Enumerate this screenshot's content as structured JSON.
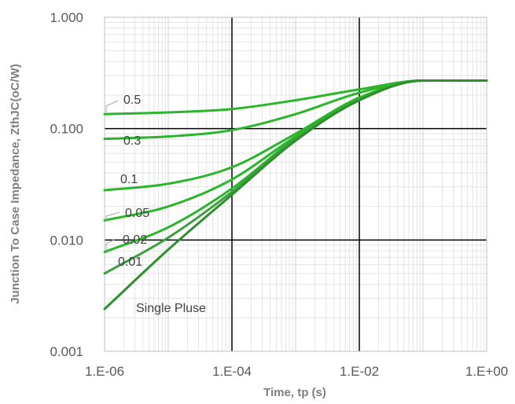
{
  "chart_data": {
    "type": "line",
    "title": "",
    "xlabel": "Time, tp (s)",
    "ylabel": "Junction To Case Impedance, ZthJC(oC/W)",
    "x_scale": "log",
    "y_scale": "log",
    "xlim": [
      1e-06,
      1
    ],
    "ylim": [
      0.001,
      1
    ],
    "x_tick_labels": [
      "1.E-06",
      "1.E-04",
      "1.E-02",
      "1.E+00"
    ],
    "y_tick_labels": [
      "0.001",
      "0.010",
      "0.100",
      "1.000"
    ],
    "grid": "major and minor on both log axes",
    "legend": "none; series labelled inline at left",
    "line_color": "#22aa22",
    "series": [
      {
        "name": "0.5",
        "x": [
          1e-06,
          1e-05,
          0.0001,
          0.001,
          0.01,
          0.1,
          1
        ],
        "y": [
          0.135,
          0.14,
          0.15,
          0.18,
          0.225,
          0.27,
          0.27
        ]
      },
      {
        "name": "0.3",
        "x": [
          1e-06,
          1e-05,
          0.0001,
          0.001,
          0.01,
          0.1,
          1
        ],
        "y": [
          0.081,
          0.085,
          0.097,
          0.135,
          0.21,
          0.27,
          0.27
        ]
      },
      {
        "name": "0.1",
        "x": [
          1e-06,
          1e-05,
          0.0001,
          0.001,
          0.01,
          0.1,
          1
        ],
        "y": [
          0.028,
          0.032,
          0.045,
          0.09,
          0.19,
          0.27,
          0.27
        ]
      },
      {
        "name": "0.05",
        "x": [
          1e-06,
          1e-05,
          0.0001,
          0.001,
          0.01,
          0.1,
          1
        ],
        "y": [
          0.015,
          0.02,
          0.035,
          0.085,
          0.185,
          0.27,
          0.27
        ]
      },
      {
        "name": "0.02",
        "x": [
          1e-06,
          1e-05,
          0.0001,
          0.001,
          0.01,
          0.1,
          1
        ],
        "y": [
          0.0078,
          0.013,
          0.029,
          0.082,
          0.182,
          0.27,
          0.27
        ]
      },
      {
        "name": "0.01",
        "x": [
          1e-06,
          1e-05,
          0.0001,
          0.001,
          0.01,
          0.1,
          1
        ],
        "y": [
          0.005,
          0.0105,
          0.027,
          0.08,
          0.18,
          0.27,
          0.27
        ]
      },
      {
        "name": "Single Pluse",
        "x": [
          1e-06,
          1e-05,
          0.0001,
          0.001,
          0.01,
          0.1,
          1
        ],
        "y": [
          0.0024,
          0.0082,
          0.0255,
          0.078,
          0.18,
          0.27,
          0.27
        ]
      }
    ]
  }
}
